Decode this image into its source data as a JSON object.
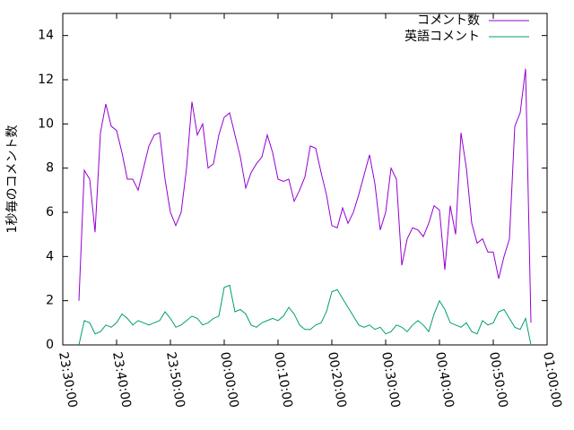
{
  "chart_data": {
    "type": "line",
    "y_label": "1秒毎のコメント数",
    "x": [
      "23:33:00",
      "23:34:00",
      "23:35:00",
      "23:36:00",
      "23:37:00",
      "23:38:00",
      "23:39:00",
      "23:40:00",
      "23:41:00",
      "23:42:00",
      "23:43:00",
      "23:44:00",
      "23:45:00",
      "23:46:00",
      "23:47:00",
      "23:48:00",
      "23:49:00",
      "23:50:00",
      "23:51:00",
      "23:52:00",
      "23:53:00",
      "23:54:00",
      "23:55:00",
      "23:56:00",
      "23:57:00",
      "23:58:00",
      "23:59:00",
      "00:00:00",
      "00:01:00",
      "00:02:00",
      "00:03:00",
      "00:04:00",
      "00:05:00",
      "00:06:00",
      "00:07:00",
      "00:08:00",
      "00:09:00",
      "00:10:00",
      "00:11:00",
      "00:12:00",
      "00:13:00",
      "00:14:00",
      "00:15:00",
      "00:16:00",
      "00:17:00",
      "00:18:00",
      "00:19:00",
      "00:20:00",
      "00:21:00",
      "00:22:00",
      "00:23:00",
      "00:24:00",
      "00:25:00",
      "00:26:00",
      "00:27:00",
      "00:28:00",
      "00:29:00",
      "00:30:00",
      "00:31:00",
      "00:32:00",
      "00:33:00",
      "00:34:00",
      "00:35:00",
      "00:36:00",
      "00:37:00",
      "00:38:00",
      "00:39:00",
      "00:40:00",
      "00:41:00",
      "00:42:00",
      "00:43:00",
      "00:44:00",
      "00:45:00",
      "00:46:00",
      "00:47:00",
      "00:48:00",
      "00:49:00",
      "00:50:00",
      "00:51:00",
      "00:52:00",
      "00:53:00",
      "00:54:00",
      "00:55:00",
      "00:56:00",
      "00:57:00"
    ],
    "series": [
      {
        "name": "コメント数",
        "color": "#9400d3",
        "values": [
          2.0,
          7.9,
          7.5,
          5.1,
          9.6,
          10.9,
          9.9,
          9.7,
          8.7,
          7.5,
          7.5,
          7.0,
          8.0,
          9.0,
          9.5,
          9.6,
          7.5,
          6.0,
          5.4,
          6.0,
          8.0,
          11.0,
          9.5,
          10.0,
          8.0,
          8.2,
          9.5,
          10.3,
          10.5,
          9.5,
          8.5,
          7.1,
          7.8,
          8.2,
          8.5,
          9.5,
          8.7,
          7.5,
          7.4,
          7.5,
          6.5,
          7.0,
          7.6,
          9.0,
          8.9,
          7.8,
          6.8,
          5.4,
          5.3,
          6.2,
          5.5,
          6.0,
          6.8,
          7.7,
          8.6,
          7.3,
          5.2,
          6.0,
          8.0,
          7.5,
          3.6,
          4.8,
          5.3,
          5.2,
          4.9,
          5.5,
          6.3,
          6.1,
          3.4,
          6.3,
          5.0,
          9.6,
          8.0,
          5.5,
          4.6,
          4.8,
          4.2,
          4.2,
          3.0,
          4.0,
          4.8,
          9.9,
          10.5,
          12.5,
          1.0
        ]
      },
      {
        "name": "英語コメント",
        "color": "#009e73",
        "values": [
          0.0,
          1.1,
          1.0,
          0.5,
          0.6,
          0.9,
          0.8,
          1.0,
          1.4,
          1.2,
          0.9,
          1.1,
          1.0,
          0.9,
          1.0,
          1.1,
          1.5,
          1.2,
          0.8,
          0.9,
          1.1,
          1.3,
          1.2,
          0.9,
          1.0,
          1.2,
          1.3,
          2.6,
          2.7,
          1.5,
          1.6,
          1.4,
          0.9,
          0.8,
          1.0,
          1.1,
          1.2,
          1.1,
          1.3,
          1.7,
          1.4,
          0.9,
          0.7,
          0.7,
          0.9,
          1.0,
          1.5,
          2.4,
          2.5,
          2.1,
          1.7,
          1.3,
          0.9,
          0.8,
          0.9,
          0.7,
          0.8,
          0.5,
          0.6,
          0.9,
          0.8,
          0.6,
          0.9,
          1.1,
          0.9,
          0.6,
          1.4,
          2.0,
          1.6,
          1.0,
          0.9,
          0.8,
          1.0,
          0.6,
          0.5,
          1.1,
          0.9,
          1.0,
          1.5,
          1.6,
          1.2,
          0.8,
          0.7,
          1.2,
          0.0
        ]
      }
    ],
    "xlim": [
      "23:30:00",
      "01:00:00"
    ],
    "xticks": [
      "23:30:00",
      "23:40:00",
      "23:50:00",
      "00:00:00",
      "00:10:00",
      "00:20:00",
      "00:30:00",
      "00:40:00",
      "00:50:00",
      "01:00:00"
    ],
    "ylim": [
      0,
      15
    ],
    "yticks": [
      0,
      2,
      4,
      6,
      8,
      10,
      12,
      14
    ],
    "legend": "top-right"
  }
}
